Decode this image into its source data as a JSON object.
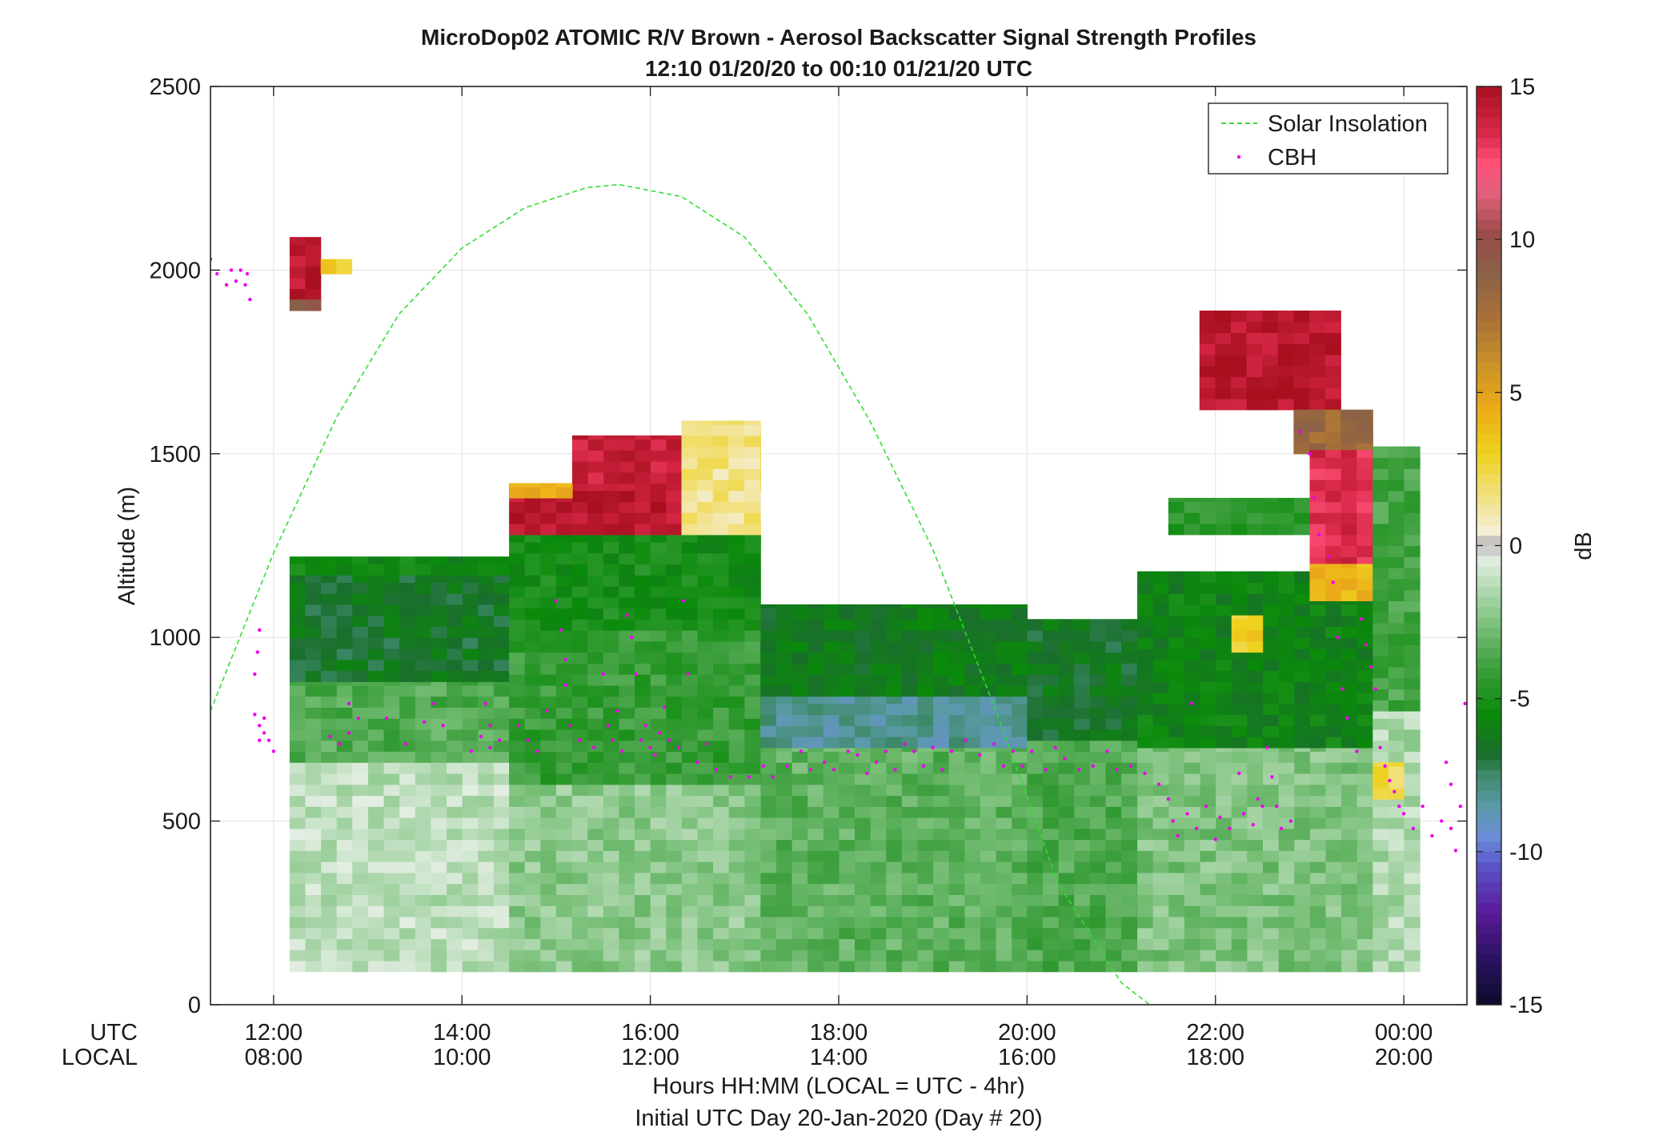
{
  "chart_data": {
    "type": "heatmap",
    "title": "MicroDop02 ATOMIC R/V Brown - Aerosol Backscatter Signal Strength Profiles",
    "subtitle": "12:10 01/20/20 to 00:10 01/21/20  UTC",
    "ylabel": "Altitude (m)",
    "xlabel": "Hours HH:MM  (LOCAL = UTC - 4hr)",
    "footer": "Initial UTC Day 20-Jan-2020 (Day # 20)",
    "x_row_labels": [
      "UTC",
      "LOCAL"
    ],
    "xlim_hours_utc": [
      11.33,
      24.67
    ],
    "ylim": [
      0,
      2500
    ],
    "yticks": [
      0,
      500,
      1000,
      1500,
      2000,
      2500
    ],
    "xticks": [
      {
        "hour": 12,
        "utc": "12:00",
        "local": "08:00"
      },
      {
        "hour": 14,
        "utc": "14:00",
        "local": "10:00"
      },
      {
        "hour": 16,
        "utc": "16:00",
        "local": "12:00"
      },
      {
        "hour": 18,
        "utc": "18:00",
        "local": "14:00"
      },
      {
        "hour": 20,
        "utc": "20:00",
        "local": "16:00"
      },
      {
        "hour": 22,
        "utc": "22:00",
        "local": "18:00"
      },
      {
        "hour": 24,
        "utc": "00:00",
        "local": "20:00"
      }
    ],
    "grid": true,
    "legend": {
      "position": "top-right",
      "entries": [
        {
          "name": "Solar Insolation",
          "style": "dashed-line",
          "color": "#33dd33"
        },
        {
          "name": "CBH",
          "style": "dot",
          "color": "#ee00ee"
        }
      ]
    },
    "colorbar": {
      "label": "dB",
      "range": [
        -15,
        15
      ],
      "ticks": [
        -15,
        -10,
        -5,
        0,
        5,
        10,
        15
      ],
      "stops": [
        [
          -15,
          "#0b0b2a"
        ],
        [
          -13.5,
          "#2b1260"
        ],
        [
          -12,
          "#5a1a9a"
        ],
        [
          -10.5,
          "#5b52c8"
        ],
        [
          -9.5,
          "#6a8ed8"
        ],
        [
          -8.5,
          "#5a9aa6"
        ],
        [
          -7.5,
          "#3f8a6c"
        ],
        [
          -6.8,
          "#1a6e2c"
        ],
        [
          -5.5,
          "#0a8a0a"
        ],
        [
          -4,
          "#3b9e3b"
        ],
        [
          -2.5,
          "#7ec27e"
        ],
        [
          -1,
          "#c6e2c6"
        ],
        [
          -0.3,
          "#e8f0e8"
        ],
        [
          0,
          "#a8a8a8"
        ],
        [
          0.4,
          "#f4f0dc"
        ],
        [
          1.5,
          "#f2e28a"
        ],
        [
          3,
          "#eed21e"
        ],
        [
          4.5,
          "#ecaa18"
        ],
        [
          6,
          "#c89028"
        ],
        [
          7.5,
          "#a87038"
        ],
        [
          9,
          "#886048"
        ],
        [
          10.2,
          "#9c4a4a"
        ],
        [
          11.5,
          "#e0607a"
        ],
        [
          12.5,
          "#ff5078"
        ],
        [
          13.5,
          "#d82848"
        ],
        [
          15,
          "#a81020"
        ]
      ]
    },
    "time_step_hours": 0.1667,
    "time_grid_start_hour": 12.17,
    "layers": [
      {
        "t": [
          12.17,
          14.5
        ],
        "z": [
          90,
          660
        ],
        "db": -1.2
      },
      {
        "t": [
          12.17,
          14.5
        ],
        "z": [
          660,
          880
        ],
        "db": -3.5
      },
      {
        "t": [
          12.17,
          14.5
        ],
        "z": [
          880,
          1220
        ],
        "db": -6.6
      },
      {
        "t": [
          12.17,
          14.5
        ],
        "z": [
          1170,
          1220
        ],
        "db": -5.5
      },
      {
        "t": [
          12.17,
          12.5
        ],
        "z": [
          1890,
          2090
        ],
        "db": 14.5
      },
      {
        "t": [
          12.17,
          12.5
        ],
        "z": [
          1890,
          1920
        ],
        "db": 9
      },
      {
        "t": [
          12.5,
          12.83
        ],
        "z": [
          1990,
          2030
        ],
        "db": 3
      },
      {
        "t": [
          14.5,
          17.17
        ],
        "z": [
          90,
          600
        ],
        "db": -2.2
      },
      {
        "t": [
          14.5,
          17.17
        ],
        "z": [
          600,
          1020
        ],
        "db": -4.2
      },
      {
        "t": [
          14.5,
          17.17
        ],
        "z": [
          1020,
          1280
        ],
        "db": -5.2
      },
      {
        "t": [
          14.5,
          16.33
        ],
        "z": [
          1280,
          1420
        ],
        "db": 14.5
      },
      {
        "t": [
          14.5,
          15.17
        ],
        "z": [
          1380,
          1420
        ],
        "db": 4.5
      },
      {
        "t": [
          15.17,
          16.33
        ],
        "z": [
          1420,
          1550
        ],
        "db": 14
      },
      {
        "t": [
          16.33,
          17.17
        ],
        "z": [
          1280,
          1590
        ],
        "db": 1.5
      },
      {
        "t": [
          17.17,
          20.0
        ],
        "z": [
          90,
          700
        ],
        "db": -3.2
      },
      {
        "t": [
          17.17,
          20.0
        ],
        "z": [
          700,
          840
        ],
        "db": -8.2
      },
      {
        "t": [
          17.17,
          20.0
        ],
        "z": [
          840,
          1090
        ],
        "db": -6.2
      },
      {
        "t": [
          20.0,
          21.17
        ],
        "z": [
          90,
          720
        ],
        "db": -3.6
      },
      {
        "t": [
          20.0,
          21.17
        ],
        "z": [
          720,
          1050
        ],
        "db": -6.5
      },
      {
        "t": [
          21.17,
          23.67
        ],
        "z": [
          90,
          700
        ],
        "db": -2.5
      },
      {
        "t": [
          21.17,
          23.67
        ],
        "z": [
          700,
          1180
        ],
        "db": -5.8
      },
      {
        "t": [
          22.17,
          22.5
        ],
        "z": [
          960,
          1060
        ],
        "db": 3
      },
      {
        "t": [
          21.5,
          23.0
        ],
        "z": [
          1280,
          1380
        ],
        "db": -4.5
      },
      {
        "t": [
          21.83,
          23.33
        ],
        "z": [
          1620,
          1890
        ],
        "db": 14.5
      },
      {
        "t": [
          22.83,
          23.67
        ],
        "z": [
          1500,
          1620
        ],
        "db": 8
      },
      {
        "t": [
          23.0,
          23.67
        ],
        "z": [
          1130,
          1510
        ],
        "db": 13.5
      },
      {
        "t": [
          23.0,
          23.67
        ],
        "z": [
          1100,
          1200
        ],
        "db": 4
      },
      {
        "t": [
          23.67,
          24.17
        ],
        "z": [
          90,
          800
        ],
        "db": -1.5
      },
      {
        "t": [
          23.67,
          24.17
        ],
        "z": [
          800,
          1520
        ],
        "db": -3.8
      },
      {
        "t": [
          23.67,
          24.0
        ],
        "z": [
          560,
          660
        ],
        "db": 2.5
      }
    ],
    "solar_insolation": {
      "description_units": "altitude-equivalent curve on plot axes",
      "points": [
        [
          11.33,
          800
        ],
        [
          12.0,
          1230
        ],
        [
          12.67,
          1600
        ],
        [
          13.33,
          1880
        ],
        [
          14.0,
          2060
        ],
        [
          14.67,
          2170
        ],
        [
          15.33,
          2225
        ],
        [
          15.67,
          2233
        ],
        [
          16.33,
          2200
        ],
        [
          17.0,
          2090
        ],
        [
          17.67,
          1880
        ],
        [
          18.33,
          1590
        ],
        [
          19.0,
          1240
        ],
        [
          19.67,
          800
        ],
        [
          20.33,
          330
        ],
        [
          21.0,
          60
        ],
        [
          21.3,
          0
        ],
        [
          24.67,
          0
        ]
      ]
    },
    "cbh": {
      "note": "cloud base height detections (m) as hour / altitude pairs",
      "points": [
        [
          11.33,
          2030
        ],
        [
          11.4,
          1990
        ],
        [
          11.5,
          1960
        ],
        [
          11.55,
          2000
        ],
        [
          11.6,
          1970
        ],
        [
          11.65,
          2000
        ],
        [
          11.7,
          1960
        ],
        [
          11.72,
          1990
        ],
        [
          11.75,
          1920
        ],
        [
          11.85,
          1020
        ],
        [
          11.83,
          960
        ],
        [
          11.8,
          900
        ],
        [
          11.8,
          790
        ],
        [
          11.85,
          760
        ],
        [
          11.9,
          740
        ],
        [
          11.95,
          720
        ],
        [
          12.0,
          690
        ],
        [
          11.9,
          780
        ],
        [
          11.85,
          720
        ],
        [
          12.6,
          730
        ],
        [
          12.7,
          710
        ],
        [
          12.8,
          820
        ],
        [
          12.8,
          740
        ],
        [
          12.9,
          780
        ],
        [
          13.2,
          780
        ],
        [
          13.4,
          710
        ],
        [
          13.6,
          770
        ],
        [
          13.8,
          760
        ],
        [
          13.7,
          820
        ],
        [
          14.1,
          690
        ],
        [
          14.2,
          730
        ],
        [
          14.3,
          700
        ],
        [
          14.4,
          720
        ],
        [
          14.3,
          760
        ],
        [
          14.25,
          820
        ],
        [
          14.6,
          760
        ],
        [
          14.7,
          720
        ],
        [
          14.8,
          690
        ],
        [
          14.9,
          800
        ],
        [
          15.0,
          1100
        ],
        [
          15.05,
          1020
        ],
        [
          15.1,
          940
        ],
        [
          15.1,
          870
        ],
        [
          15.15,
          760
        ],
        [
          15.25,
          720
        ],
        [
          15.4,
          700
        ],
        [
          15.5,
          900
        ],
        [
          15.55,
          760
        ],
        [
          15.6,
          720
        ],
        [
          15.65,
          800
        ],
        [
          15.7,
          690
        ],
        [
          15.75,
          1060
        ],
        [
          15.8,
          1000
        ],
        [
          15.85,
          900
        ],
        [
          15.9,
          720
        ],
        [
          15.95,
          760
        ],
        [
          16.0,
          700
        ],
        [
          16.05,
          680
        ],
        [
          16.1,
          740
        ],
        [
          16.15,
          810
        ],
        [
          16.2,
          720
        ],
        [
          16.3,
          700
        ],
        [
          16.35,
          1100
        ],
        [
          16.4,
          900
        ],
        [
          16.5,
          660
        ],
        [
          16.6,
          710
        ],
        [
          16.7,
          640
        ],
        [
          16.85,
          620
        ],
        [
          17.05,
          620
        ],
        [
          17.2,
          650
        ],
        [
          17.3,
          620
        ],
        [
          17.45,
          650
        ],
        [
          17.6,
          690
        ],
        [
          17.7,
          640
        ],
        [
          17.85,
          660
        ],
        [
          17.95,
          640
        ],
        [
          18.1,
          690
        ],
        [
          18.2,
          680
        ],
        [
          18.3,
          630
        ],
        [
          18.4,
          660
        ],
        [
          18.5,
          690
        ],
        [
          18.6,
          640
        ],
        [
          18.7,
          710
        ],
        [
          18.8,
          690
        ],
        [
          18.9,
          650
        ],
        [
          19.0,
          700
        ],
        [
          19.1,
          640
        ],
        [
          19.2,
          690
        ],
        [
          19.35,
          720
        ],
        [
          19.5,
          680
        ],
        [
          19.65,
          710
        ],
        [
          19.75,
          650
        ],
        [
          19.85,
          690
        ],
        [
          19.95,
          650
        ],
        [
          20.05,
          690
        ],
        [
          20.2,
          640
        ],
        [
          20.3,
          700
        ],
        [
          20.4,
          670
        ],
        [
          20.55,
          640
        ],
        [
          20.7,
          650
        ],
        [
          20.85,
          690
        ],
        [
          20.95,
          640
        ],
        [
          21.1,
          650
        ],
        [
          21.25,
          630
        ],
        [
          21.4,
          600
        ],
        [
          21.5,
          560
        ],
        [
          21.55,
          500
        ],
        [
          21.6,
          460
        ],
        [
          21.7,
          520
        ],
        [
          21.75,
          820
        ],
        [
          21.8,
          480
        ],
        [
          21.9,
          540
        ],
        [
          22.0,
          450
        ],
        [
          22.05,
          510
        ],
        [
          22.15,
          480
        ],
        [
          22.25,
          630
        ],
        [
          22.3,
          520
        ],
        [
          22.4,
          490
        ],
        [
          22.45,
          560
        ],
        [
          22.5,
          540
        ],
        [
          22.55,
          700
        ],
        [
          22.6,
          620
        ],
        [
          22.65,
          540
        ],
        [
          22.7,
          480
        ],
        [
          22.8,
          500
        ],
        [
          22.9,
          1560
        ],
        [
          23.0,
          1500
        ],
        [
          23.05,
          1380
        ],
        [
          23.1,
          1280
        ],
        [
          23.2,
          1220
        ],
        [
          23.25,
          1150
        ],
        [
          23.3,
          1000
        ],
        [
          23.35,
          860
        ],
        [
          23.4,
          780
        ],
        [
          23.5,
          690
        ],
        [
          23.55,
          1050
        ],
        [
          23.6,
          980
        ],
        [
          23.65,
          920
        ],
        [
          23.7,
          860
        ],
        [
          23.75,
          700
        ],
        [
          23.8,
          650
        ],
        [
          23.85,
          610
        ],
        [
          23.9,
          580
        ],
        [
          23.95,
          540
        ],
        [
          24.0,
          520
        ],
        [
          24.1,
          480
        ],
        [
          24.2,
          540
        ],
        [
          24.3,
          460
        ],
        [
          24.4,
          500
        ],
        [
          24.5,
          480
        ],
        [
          24.55,
          420
        ],
        [
          24.6,
          540
        ],
        [
          24.65,
          820
        ],
        [
          24.5,
          600
        ],
        [
          24.45,
          660
        ]
      ]
    }
  }
}
